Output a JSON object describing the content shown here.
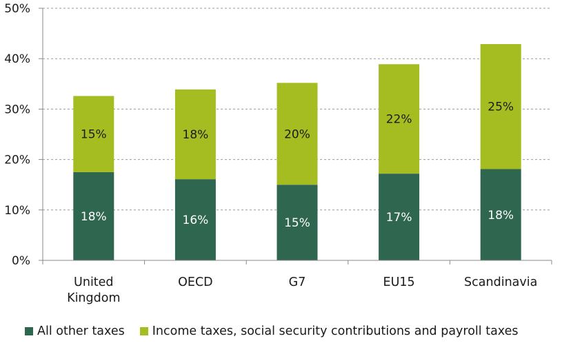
{
  "chart_data": {
    "type": "bar",
    "stacked": true,
    "title": "",
    "xlabel": "",
    "ylabel": "",
    "categories": [
      "United Kingdom",
      "OECD",
      "G7",
      "EU15",
      "Scandinavia"
    ],
    "category_lines": [
      [
        "United",
        "Kingdom"
      ],
      [
        "OECD"
      ],
      [
        "G7"
      ],
      [
        "EU15"
      ],
      [
        "Scandinavia"
      ]
    ],
    "series": [
      {
        "name": "All other taxes",
        "color": "#2f6650",
        "values": [
          17.5,
          16.1,
          15.0,
          17.2,
          18.1
        ],
        "labels": [
          "18%",
          "16%",
          "15%",
          "17%",
          "18%"
        ]
      },
      {
        "name": "Income taxes, social security contributions and payroll taxes",
        "color": "#a6bd22",
        "values": [
          15.1,
          17.8,
          20.2,
          21.7,
          24.8
        ],
        "labels": [
          "15%",
          "18%",
          "20%",
          "22%",
          "25%"
        ]
      }
    ],
    "ylim": [
      0,
      50
    ],
    "yticks": [
      0,
      10,
      20,
      30,
      40,
      50
    ],
    "ytick_labels": [
      "0%",
      "10%",
      "20%",
      "30%",
      "40%",
      "50%"
    ],
    "grid": true,
    "legend_position": "bottom"
  }
}
